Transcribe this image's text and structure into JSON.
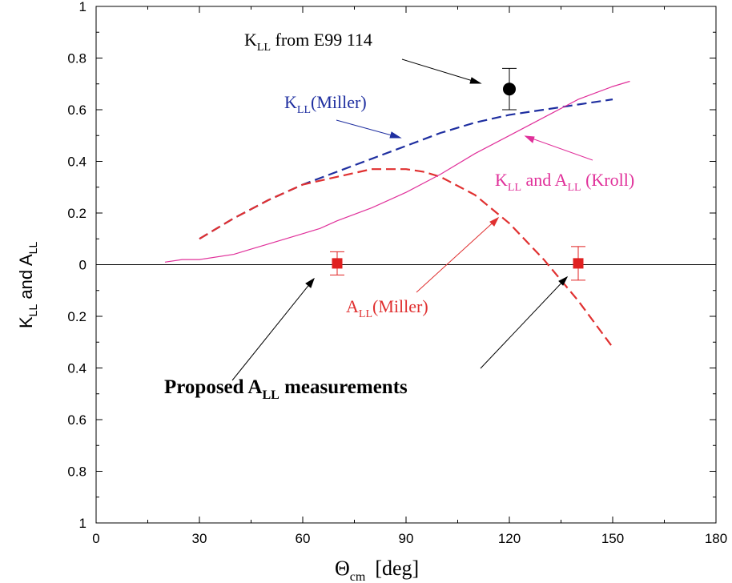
{
  "chart_data": {
    "type": "line",
    "xlabel": {
      "main": "Θ",
      "sub": "cm",
      "unit": "[deg]"
    },
    "ylabel": {
      "k": "K",
      "k_sub": "LL",
      "and": " and ",
      "a": "A",
      "a_sub": "LL"
    },
    "xlim": [
      0,
      180
    ],
    "ylim": [
      -1,
      1
    ],
    "x_ticks": [
      0,
      30,
      60,
      90,
      120,
      150,
      180
    ],
    "x_tick_labels": [
      "0",
      "30",
      "60",
      "90",
      "120",
      "150",
      "180"
    ],
    "y_ticks": [
      1,
      0.8,
      0.6,
      0.4,
      0.2,
      0,
      -0.2,
      -0.4,
      -0.6,
      -0.8,
      -1
    ],
    "y_tick_labels": [
      "1",
      "0.8",
      "0.6",
      "0.4",
      "0.2",
      "0",
      "0.2",
      "0.4",
      "0.6",
      "0.8",
      "1"
    ],
    "zero_line": true,
    "grid": false,
    "series": [
      {
        "color": "#1f2fa0",
        "dash": "dashed",
        "x": [
          30,
          40,
          50,
          60,
          70,
          80,
          90,
          100,
          110,
          120,
          130,
          140,
          150
        ],
        "y": [
          0.1,
          0.18,
          0.25,
          0.31,
          0.36,
          0.41,
          0.46,
          0.51,
          0.55,
          0.58,
          0.6,
          0.62,
          0.64
        ]
      },
      {
        "color": "#e03030",
        "dash": "dashed",
        "x": [
          30,
          40,
          50,
          60,
          70,
          80,
          85,
          90,
          95,
          100,
          110,
          120,
          130,
          140,
          150
        ],
        "y": [
          0.1,
          0.18,
          0.25,
          0.31,
          0.34,
          0.37,
          0.37,
          0.37,
          0.36,
          0.34,
          0.27,
          0.16,
          0.02,
          -0.14,
          -0.32
        ]
      },
      {
        "color": "#e0309a",
        "dash": "solid",
        "x": [
          20,
          25,
          30,
          40,
          45,
          50,
          60,
          65,
          70,
          80,
          90,
          100,
          110,
          120,
          130,
          140,
          150,
          155
        ],
        "y": [
          0.01,
          0.02,
          0.02,
          0.04,
          0.06,
          0.08,
          0.12,
          0.14,
          0.17,
          0.22,
          0.28,
          0.35,
          0.43,
          0.5,
          0.57,
          0.64,
          0.69,
          0.71
        ]
      }
    ],
    "points": [
      {
        "x": 120,
        "y": 0.68,
        "err": 0.08,
        "marker": "circle",
        "color": "#000000"
      },
      {
        "x": 70,
        "y": 0.005,
        "err": 0.045,
        "marker": "square",
        "color": "#e02020"
      },
      {
        "x": 140,
        "y": 0.005,
        "err": 0.065,
        "marker": "square",
        "color": "#e02020"
      }
    ],
    "annotations": {
      "kll_e99": {
        "k": "K",
        "sub": "LL",
        "rest": " from E99   114",
        "color": "#000000"
      },
      "kll_miller": {
        "k": "K",
        "sub": "LL",
        "rest": "(Miller)",
        "color": "#1f2fa0"
      },
      "kroll": {
        "k": "K",
        "k_sub": "LL",
        "and": " and A",
        "a_sub": "LL",
        "rest": " (Kroll)",
        "color": "#e0309a"
      },
      "all_miller": {
        "a": "A",
        "sub": "LL",
        "rest": "(Miller)",
        "color": "#e03030"
      },
      "proposed": {
        "pre": "Proposed A",
        "sub": "LL",
        "rest": " measurements",
        "color": "#000000"
      }
    }
  }
}
